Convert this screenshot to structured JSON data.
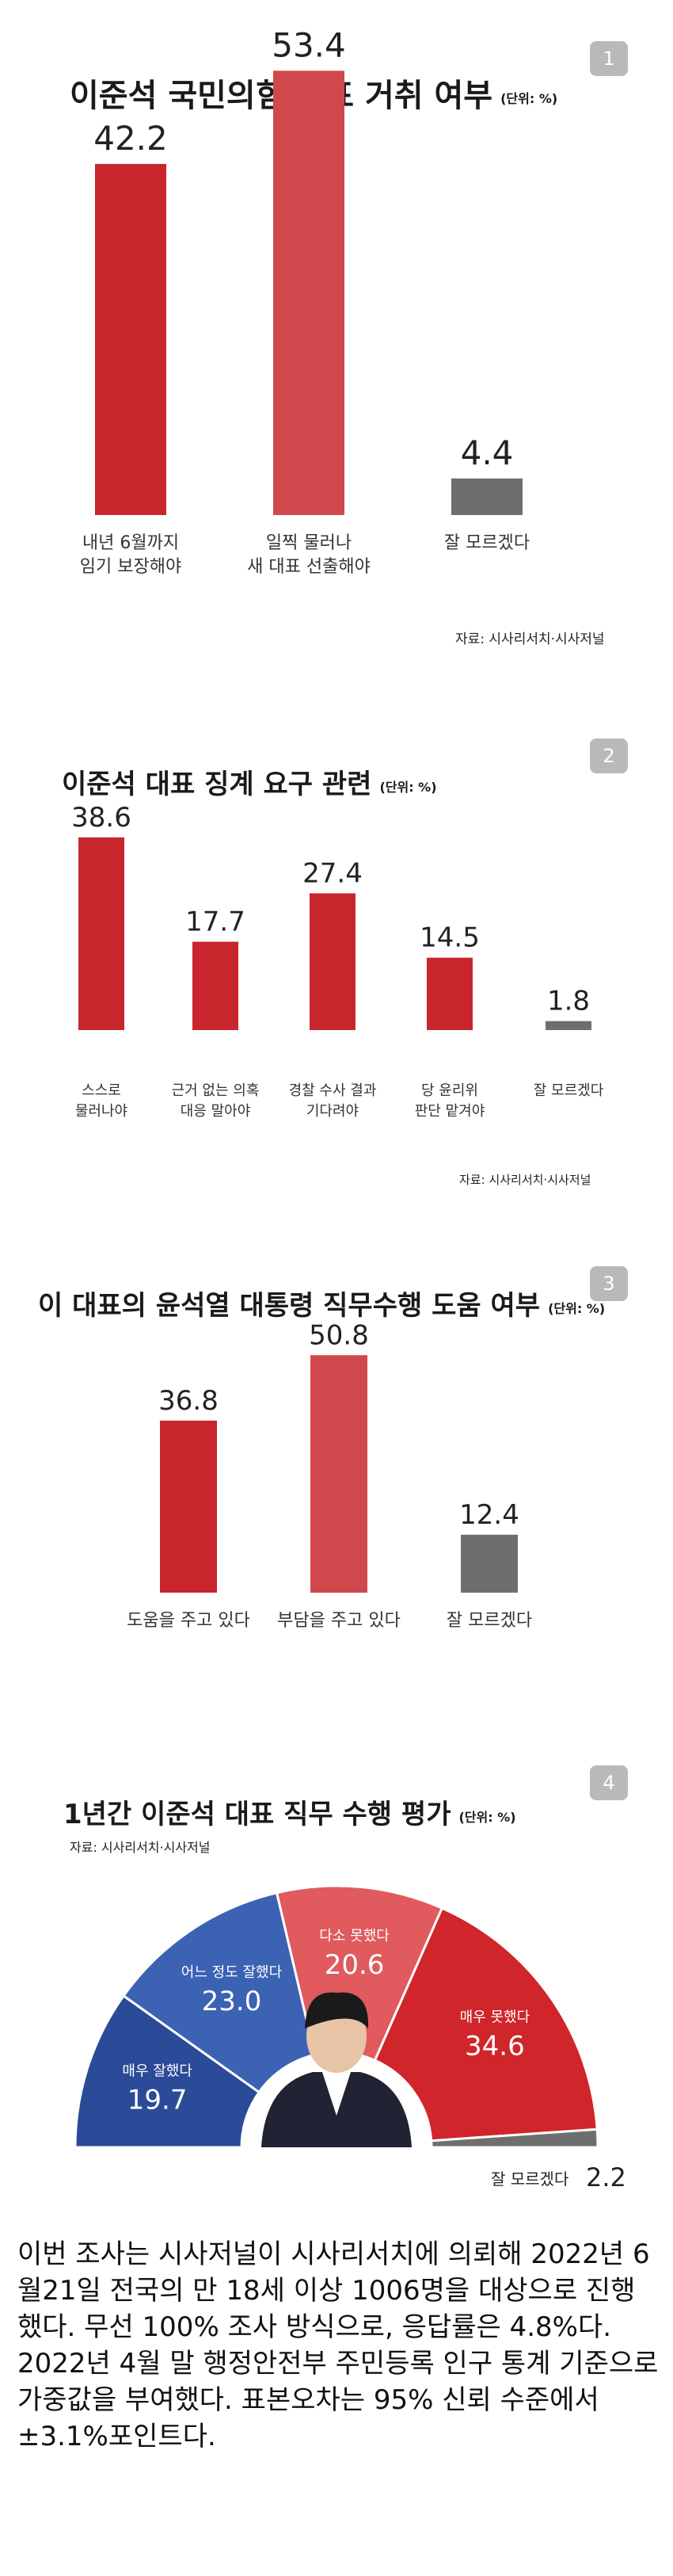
{
  "charts": [
    {
      "badge": "1",
      "title": "이준석 국민의힘 대표 거취 여부",
      "unit": "(단위: %)",
      "source": "자료: 시사리서치·시사저널"
    },
    {
      "badge": "2",
      "title": "이준석 대표 징계 요구 관련",
      "unit": "(단위: %)",
      "source": "자료: 시사리서치·시사저널"
    },
    {
      "badge": "3",
      "title": "이 대표의 윤석열 대통령 직무수행 도움 여부",
      "unit": "(단위: %)"
    },
    {
      "badge": "4",
      "title": "1년간 이준석 대표 직무 수행 평가",
      "unit": "(단위: %)",
      "source": "자료: 시사리서치·시사저널"
    }
  ],
  "chart_data": [
    {
      "type": "bar",
      "title": "이준석 국민의힘 대표 거취 여부",
      "categories": [
        [
          "내년 6월까지",
          "임기 보장해야"
        ],
        [
          "일찍 물러나",
          "새 대표 선출해야"
        ],
        [
          "잘 모르겠다"
        ]
      ],
      "values": [
        42.2,
        53.4,
        4.4
      ],
      "colors": [
        "#c8262c",
        "#d1484c",
        "#6e6e6e"
      ]
    },
    {
      "type": "bar",
      "title": "이준석 대표 징계 요구 관련",
      "categories": [
        [
          "스스로",
          "물러나야"
        ],
        [
          "근거 없는 의혹",
          "대응 말아야"
        ],
        [
          "경찰 수사 결과",
          "기다려야"
        ],
        [
          "당 윤리위",
          "판단 맡겨야"
        ],
        [
          "잘 모르겠다"
        ]
      ],
      "values": [
        38.6,
        17.7,
        27.4,
        14.5,
        1.8
      ],
      "colors": [
        "#c8262c",
        "#c8262c",
        "#c8262c",
        "#c8262c",
        "#6e6e6e"
      ]
    },
    {
      "type": "bar",
      "title": "이 대표의 윤석열 대통령 직무수행 도움 여부",
      "categories": [
        [
          "도움을 주고 있다"
        ],
        [
          "부담을 주고 있다"
        ],
        [
          "잘 모르겠다"
        ]
      ],
      "values": [
        36.8,
        50.8,
        12.4
      ],
      "colors": [
        "#c8262c",
        "#d1484c",
        "#6e6e6e"
      ]
    },
    {
      "type": "pie",
      "title": "1년간 이준석 대표 직무 수행 평가",
      "categories": [
        "매우 잘했다",
        "어느 정도 잘했다",
        "다소 못했다",
        "매우 못했다",
        "잘 모르겠다"
      ],
      "values": [
        19.7,
        23.0,
        20.6,
        34.6,
        2.2
      ],
      "colors": [
        "#2b4a97",
        "#3c62b3",
        "#e05a5e",
        "#d0252b",
        "#6e6e6e"
      ]
    }
  ],
  "note": "이번 조사는 시사저널이 시사리서치에 의뢰해 2022년 6월21일 전국의 만 18세 이상 1006명을 대상으로 진행했다. 무선 100% 조사 방식으로, 응답률은 4.8%다. 2022년 4월 말 행정안전부 주민등록 인구 통계 기준으로 가중값을 부여했다. 표본오차는 95% 신뢰 수준에서 ±3.1%포인트다."
}
